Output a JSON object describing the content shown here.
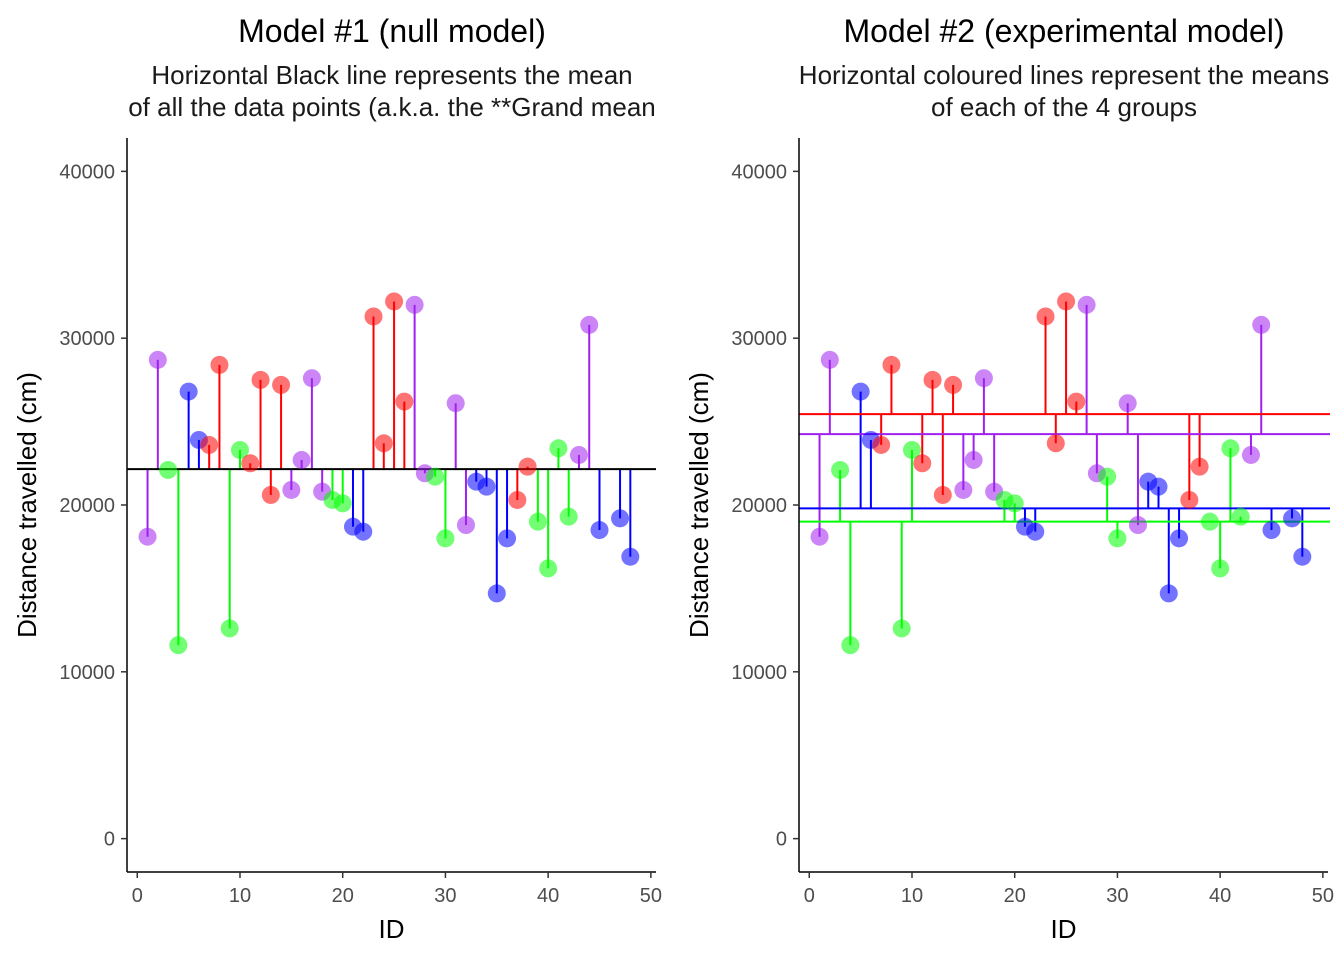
{
  "chart_data": [
    {
      "type": "scatter",
      "title": "Model #1 (null model)",
      "subtitle_lines": [
        "Horizontal Black line represents the mean",
        "of all the data points (a.k.a. the **Grand mean"
      ],
      "xlabel": "ID",
      "ylabel": "Distance travelled (cm)",
      "xlim": [
        -1,
        50.5
      ],
      "ylim": [
        -2000,
        42000
      ],
      "xticks": [
        0,
        10,
        20,
        30,
        40,
        50
      ],
      "yticks": [
        0,
        10000,
        20000,
        30000,
        40000
      ],
      "reference": "grand",
      "grand_mean": 22150
    },
    {
      "type": "scatter",
      "title": "Model #2 (experimental model)",
      "subtitle_lines": [
        "Horizontal coloured lines represent the means",
        "of each of the 4 groups"
      ],
      "xlabel": "ID",
      "ylabel": "Distance travelled (cm)",
      "xlim": [
        -1,
        50.5
      ],
      "ylim": [
        -2000,
        42000
      ],
      "xticks": [
        0,
        10,
        20,
        30,
        40,
        50
      ],
      "yticks": [
        0,
        10000,
        20000,
        30000,
        40000
      ],
      "reference": "group",
      "group_means": {
        "red": 25450,
        "purple": 24250,
        "blue": 19800,
        "green": 19000
      }
    }
  ],
  "points": [
    {
      "id": 1,
      "y": 18100,
      "g": "purple"
    },
    {
      "id": 2,
      "y": 28700,
      "g": "purple"
    },
    {
      "id": 3,
      "y": 22100,
      "g": "green"
    },
    {
      "id": 4,
      "y": 11600,
      "g": "green"
    },
    {
      "id": 5,
      "y": 26800,
      "g": "blue"
    },
    {
      "id": 6,
      "y": 23900,
      "g": "blue"
    },
    {
      "id": 7,
      "y": 23600,
      "g": "red"
    },
    {
      "id": 8,
      "y": 28400,
      "g": "red"
    },
    {
      "id": 9,
      "y": 12600,
      "g": "green"
    },
    {
      "id": 10,
      "y": 23300,
      "g": "green"
    },
    {
      "id": 11,
      "y": 22500,
      "g": "red"
    },
    {
      "id": 12,
      "y": 27500,
      "g": "red"
    },
    {
      "id": 13,
      "y": 20600,
      "g": "red"
    },
    {
      "id": 14,
      "y": 27200,
      "g": "red"
    },
    {
      "id": 15,
      "y": 20900,
      "g": "purple"
    },
    {
      "id": 16,
      "y": 22700,
      "g": "purple"
    },
    {
      "id": 17,
      "y": 27600,
      "g": "purple"
    },
    {
      "id": 18,
      "y": 20800,
      "g": "purple"
    },
    {
      "id": 19,
      "y": 20300,
      "g": "green"
    },
    {
      "id": 20,
      "y": 20100,
      "g": "green"
    },
    {
      "id": 21,
      "y": 18700,
      "g": "blue"
    },
    {
      "id": 22,
      "y": 18400,
      "g": "blue"
    },
    {
      "id": 23,
      "y": 31300,
      "g": "red"
    },
    {
      "id": 24,
      "y": 23700,
      "g": "red"
    },
    {
      "id": 25,
      "y": 32200,
      "g": "red"
    },
    {
      "id": 26,
      "y": 26200,
      "g": "red"
    },
    {
      "id": 27,
      "y": 32000,
      "g": "purple"
    },
    {
      "id": 28,
      "y": 21900,
      "g": "purple"
    },
    {
      "id": 29,
      "y": 21700,
      "g": "green"
    },
    {
      "id": 30,
      "y": 18000,
      "g": "green"
    },
    {
      "id": 31,
      "y": 26100,
      "g": "purple"
    },
    {
      "id": 32,
      "y": 18800,
      "g": "purple"
    },
    {
      "id": 33,
      "y": 21400,
      "g": "blue"
    },
    {
      "id": 34,
      "y": 21100,
      "g": "blue"
    },
    {
      "id": 35,
      "y": 14700,
      "g": "blue"
    },
    {
      "id": 36,
      "y": 18000,
      "g": "blue"
    },
    {
      "id": 37,
      "y": 20300,
      "g": "red"
    },
    {
      "id": 38,
      "y": 22300,
      "g": "red"
    },
    {
      "id": 39,
      "y": 19000,
      "g": "green"
    },
    {
      "id": 40,
      "y": 16200,
      "g": "green"
    },
    {
      "id": 41,
      "y": 23400,
      "g": "green"
    },
    {
      "id": 42,
      "y": 19300,
      "g": "green"
    },
    {
      "id": 43,
      "y": 23000,
      "g": "purple"
    },
    {
      "id": 44,
      "y": 30800,
      "g": "purple"
    },
    {
      "id": 45,
      "y": 18500,
      "g": "blue"
    },
    {
      "id": 47,
      "y": 19200,
      "g": "blue"
    },
    {
      "id": 48,
      "y": 16900,
      "g": "blue"
    }
  ],
  "colors": {
    "red": "#ff0000",
    "purple": "#a020f0",
    "blue": "#0000ff",
    "green": "#00ff00",
    "grand": "#000000"
  }
}
